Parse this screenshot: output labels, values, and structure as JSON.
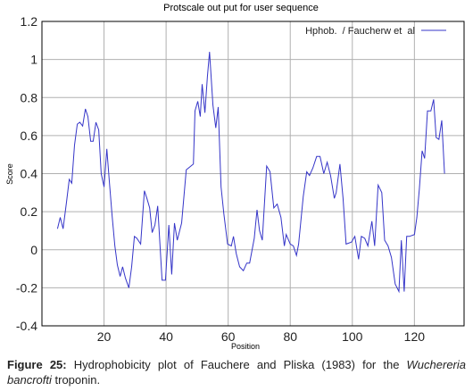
{
  "chart_data": {
    "type": "line",
    "title": "Protscale out put for user sequence",
    "x_label": "Position",
    "y_label": "Score",
    "xlim": [
      0,
      136
    ],
    "ylim": [
      -0.4,
      1.2
    ],
    "xticks": [
      20,
      40,
      60,
      80,
      100,
      120
    ],
    "yticks": [
      -0.4,
      -0.2,
      0,
      0.2,
      0.4,
      0.6,
      0.8,
      1,
      1.2
    ],
    "grid": true,
    "legend": "upper right",
    "x": [
      5,
      5.9,
      6.8,
      7.9,
      8.8,
      9.6,
      10.5,
      11.4,
      12.2,
      13.1,
      14,
      14.8,
      15.7,
      16.5,
      17.4,
      18.3,
      19.1,
      20,
      20.9,
      21.7,
      22.6,
      23.5,
      24.3,
      25.2,
      26,
      26.9,
      28,
      28.9,
      29.8,
      30.6,
      31.8,
      33,
      33.8,
      34.7,
      35.5,
      36.4,
      37.3,
      38.7,
      39.8,
      40.9,
      41.8,
      42.7,
      43.6,
      45,
      46.5,
      48.8,
      49.3,
      50.2,
      51,
      51.6,
      52.5,
      53.3,
      54,
      55.1,
      56,
      56.8,
      57.7,
      58.6,
      59.8,
      61,
      61.7,
      62.6,
      63.7,
      64.9,
      66,
      66.9,
      68.4,
      69.3,
      70.1,
      71,
      72.4,
      73.5,
      74.7,
      75.8,
      77,
      78.1,
      78.7,
      80,
      81,
      82,
      82.7,
      84.2,
      85.3,
      86.2,
      87.3,
      88.5,
      89.6,
      90.8,
      91.9,
      93,
      94.2,
      94.8,
      96,
      97,
      98,
      99.7,
      100.8,
      102,
      102.9,
      104,
      105,
      106.3,
      107.2,
      108.3,
      109.5,
      110.4,
      111.5,
      112.6,
      113.8,
      115,
      115.8,
      116.7,
      117.5,
      118.4,
      120,
      120.8,
      121.6,
      122.5,
      123.3,
      124.2,
      125.3,
      126.2,
      127,
      127.9,
      128.8,
      129.7
    ],
    "series": [
      {
        "name": "Hphob.  / Faucherw et  al",
        "color": "#3535c8",
        "values": [
          0.11,
          0.17,
          0.11,
          0.25,
          0.37,
          0.35,
          0.55,
          0.66,
          0.67,
          0.65,
          0.74,
          0.7,
          0.57,
          0.57,
          0.67,
          0.63,
          0.4,
          0.33,
          0.53,
          0.36,
          0.18,
          0.02,
          -0.08,
          -0.14,
          -0.09,
          -0.15,
          -0.2,
          -0.09,
          0.07,
          0.06,
          0.03,
          0.31,
          0.27,
          0.22,
          0.09,
          0.13,
          0.23,
          -0.16,
          -0.16,
          0.13,
          -0.13,
          0.14,
          0.05,
          0.14,
          0.42,
          0.45,
          0.73,
          0.78,
          0.7,
          0.87,
          0.72,
          0.91,
          1.04,
          0.76,
          0.64,
          0.75,
          0.33,
          0.19,
          0.03,
          0.02,
          0.07,
          -0.02,
          -0.09,
          -0.11,
          -0.07,
          -0.07,
          0.06,
          0.21,
          0.1,
          0.05,
          0.44,
          0.41,
          0.22,
          0.24,
          0.17,
          0.02,
          0.08,
          0.03,
          0.02,
          -0.03,
          0.03,
          0.28,
          0.41,
          0.39,
          0.43,
          0.49,
          0.49,
          0.4,
          0.46,
          0.39,
          0.27,
          0.3,
          0.45,
          0.27,
          0.03,
          0.04,
          0.07,
          -0.05,
          0.07,
          0.06,
          0.02,
          0.15,
          0.02,
          0.34,
          0.3,
          0.05,
          0.02,
          -0.04,
          -0.18,
          -0.22,
          0.05,
          -0.22,
          0.07,
          0.07,
          0.08,
          0.17,
          0.32,
          0.52,
          0.48,
          0.73,
          0.73,
          0.79,
          0.59,
          0.58,
          0.68,
          0.4
        ]
      }
    ]
  },
  "caption": {
    "label": "Figure 25:",
    "text": "Hydrophobicity plot of Fauchere and Pliska (1983) for the",
    "species": "Wuchereria bancrofti",
    "tail": "troponin."
  }
}
